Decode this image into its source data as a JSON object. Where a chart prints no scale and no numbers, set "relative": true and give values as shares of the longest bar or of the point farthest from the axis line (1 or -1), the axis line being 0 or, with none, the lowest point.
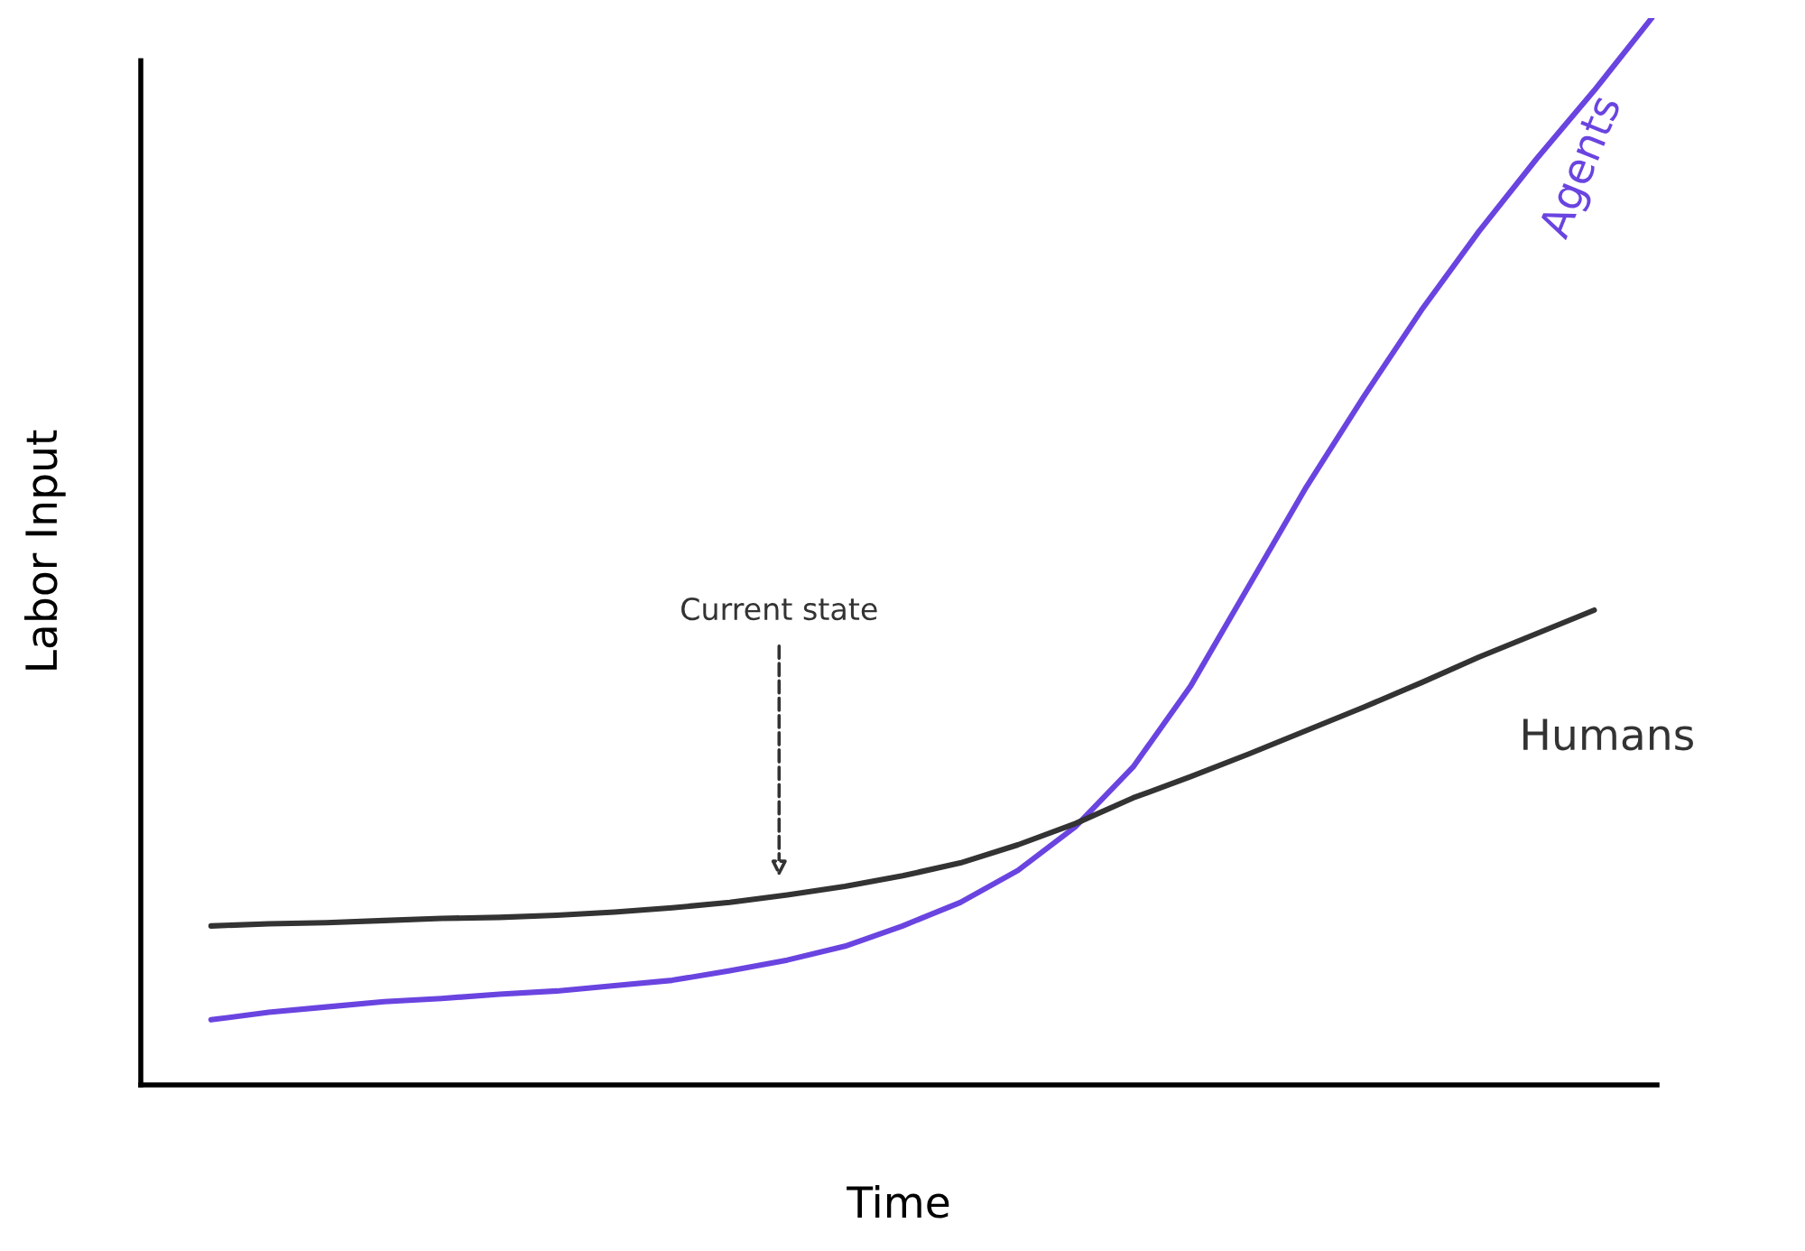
{
  "chart_data": {
    "type": "line",
    "relative": true,
    "xlabel": "Time",
    "ylabel": "Labor Input",
    "legend": false,
    "marker": "none",
    "line_style": "solid",
    "categories": [
      null,
      null,
      null,
      null,
      null,
      null,
      null,
      null,
      null,
      null,
      null,
      null,
      null,
      null,
      null,
      null,
      null,
      null,
      null,
      null,
      null,
      null,
      null,
      null,
      null,
      null
    ],
    "series": [
      {
        "name": "Agents",
        "color": "#6a44e0",
        "values": [
          0.061,
          0.068,
          0.073,
          0.078,
          0.081,
          0.085,
          0.088,
          0.093,
          0.098,
          0.107,
          0.117,
          0.13,
          0.149,
          0.171,
          0.201,
          0.242,
          0.298,
          0.374,
          0.467,
          0.56,
          0.645,
          0.726,
          0.8,
          0.868,
          0.932,
          1
        ]
      },
      {
        "name": "Humans",
        "color": "#333333",
        "values": [
          0.149,
          0.151,
          0.152,
          0.154,
          0.156,
          0.157,
          0.159,
          0.162,
          0.166,
          0.171,
          0.178,
          0.186,
          0.196,
          0.208,
          0.225,
          0.245,
          0.269,
          0.289,
          0.31,
          0.332,
          0.354,
          0.377,
          0.401,
          0.423,
          0.445,
          null
        ]
      }
    ],
    "annotations": [
      "Current state"
    ]
  }
}
